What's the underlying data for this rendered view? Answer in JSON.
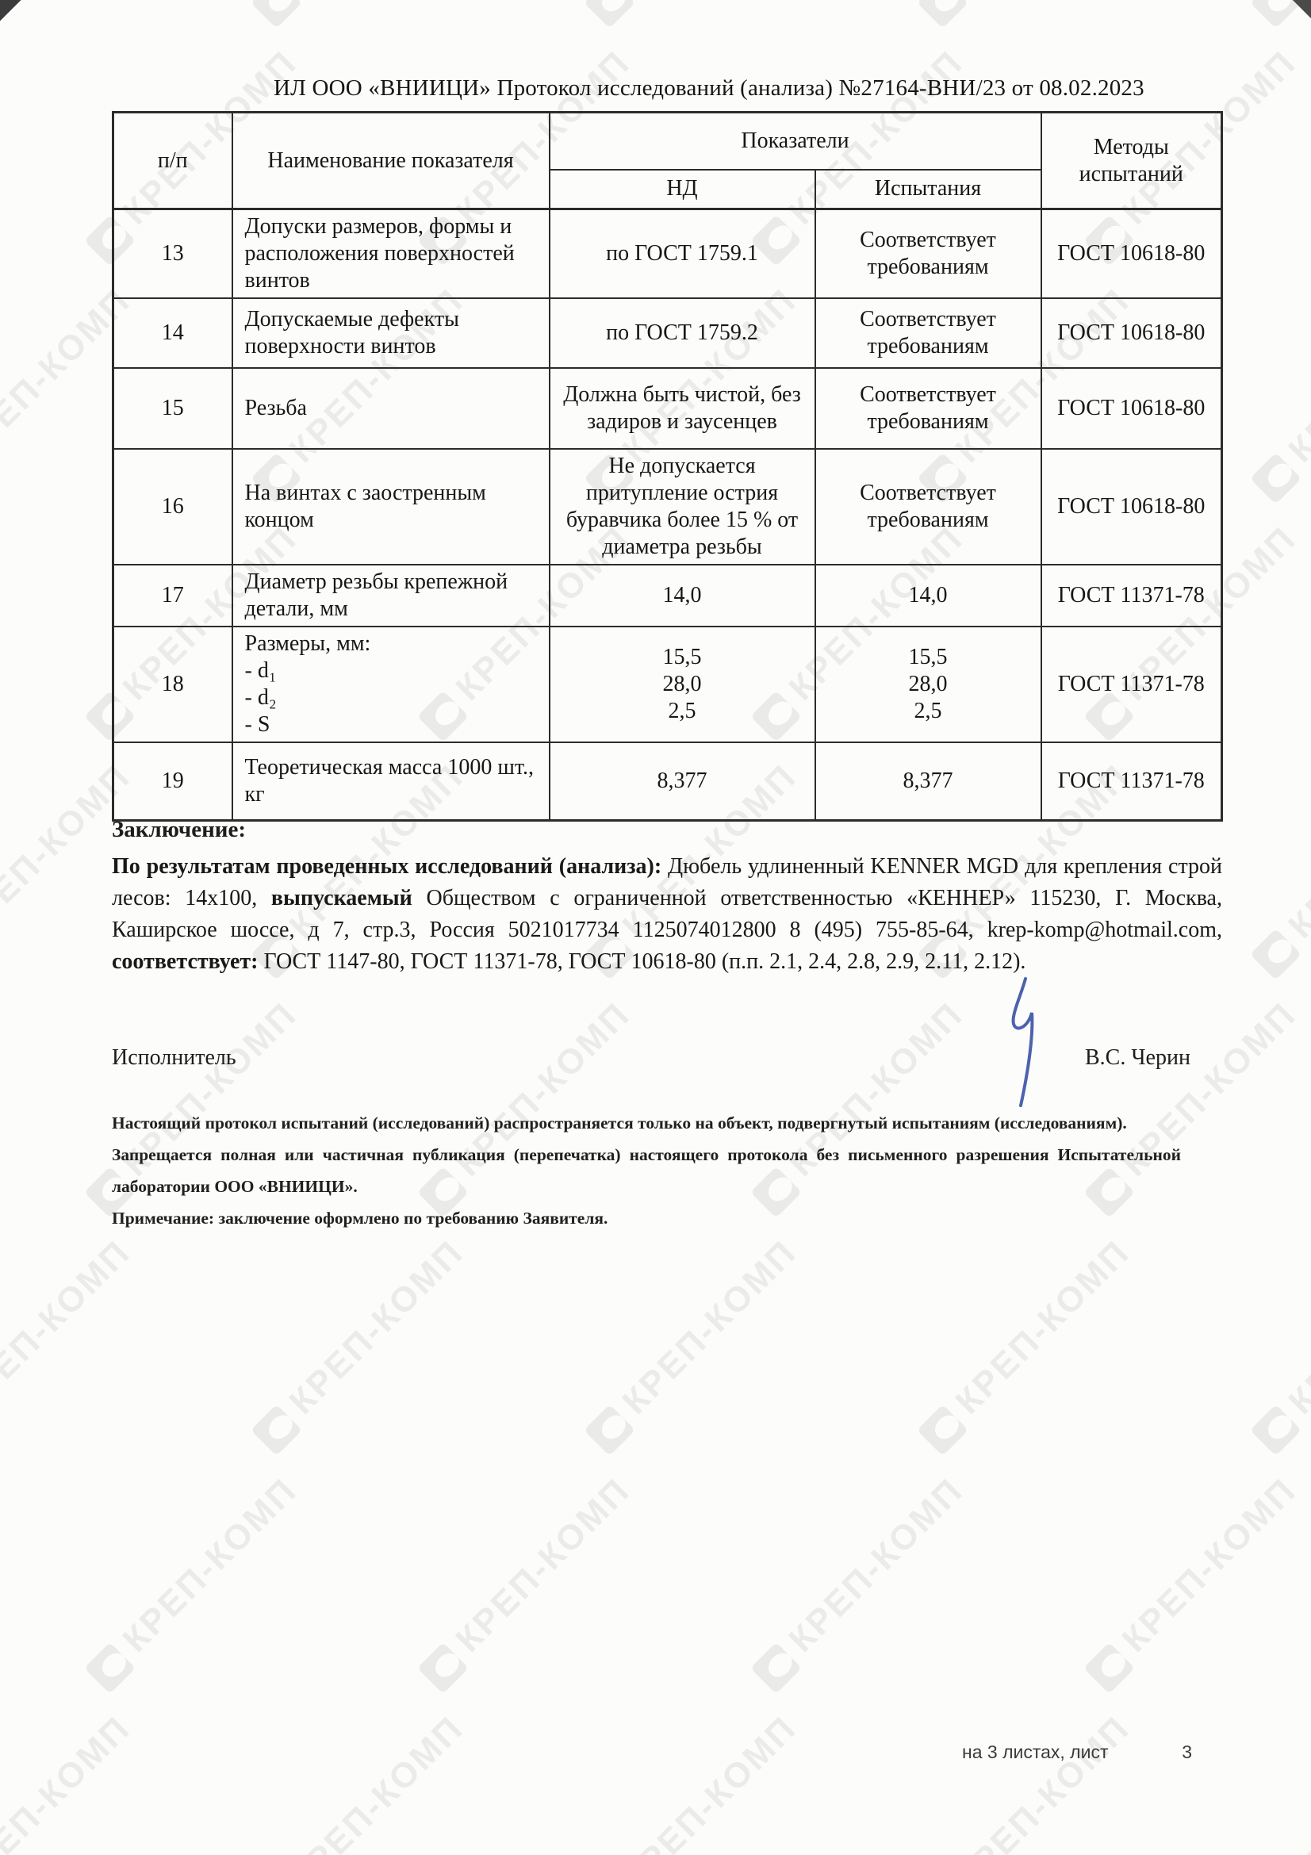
{
  "header": {
    "title": "ИЛ ООО «ВНИИЦИ» Протокол исследований (анализа)  №27164-ВНИ/23 от  08.02.2023"
  },
  "watermark": {
    "text": "КРЕП-КОМП"
  },
  "table": {
    "headers": {
      "col_num": "п/п",
      "col_name": "Наименование показателя",
      "col_group": "Показатели",
      "col_nd": "НД",
      "col_test": "Испытания",
      "col_methods": "Методы испытаний"
    },
    "rows": [
      {
        "num": "13",
        "name": "Допуски размеров, формы и расположения поверхностей винтов",
        "nd": "по ГОСТ 1759.1",
        "test": "Соответствует требованиям",
        "method": "ГОСТ 10618-80"
      },
      {
        "num": "14",
        "name": "Допускаемые дефекты поверхности винтов",
        "nd": "по ГОСТ 1759.2",
        "test": "Соответствует требованиям",
        "method": "ГОСТ 10618-80"
      },
      {
        "num": "15",
        "name": "Резьба",
        "nd": "Должна быть чистой, без задиров и заусенцев",
        "test": "Соответствует требованиям",
        "method": "ГОСТ 10618-80"
      },
      {
        "num": "16",
        "name": "На винтах с заостренным концом",
        "nd": "Не допускается притупление острия буравчика более 15 % от диаметра резьбы",
        "test": "Соответствует требованиям",
        "method": "ГОСТ 10618-80"
      },
      {
        "num": "17",
        "name": "Диаметр резьбы крепежной детали, мм",
        "nd": "14,0",
        "test": "14,0",
        "method": "ГОСТ 11371-78"
      },
      {
        "num": "18",
        "name_lines": [
          "Размеры, мм:",
          "- d₁",
          "- d₂",
          "- S"
        ],
        "nd_lines": [
          "15,5",
          "28,0",
          "2,5"
        ],
        "test_lines": [
          "15,5",
          "28,0",
          "2,5"
        ],
        "method": "ГОСТ 11371-78"
      },
      {
        "num": "19",
        "name": "Теоретическая масса 1000 шт., кг",
        "nd": "8,377",
        "test": "8,377",
        "method": "ГОСТ 11371-78"
      }
    ]
  },
  "conclusion": {
    "heading": "Заключение:",
    "seg1_bold": "По результатам проведенных исследований (анализа):",
    "seg2": " Дюбель удлиненный KENNER MGD для крепления строй лесов: 14x100, ",
    "seg3_bold": "выпускаемый",
    "seg4": " Обществом с ограниченной ответственностью «КЕННЕР» 115230, Г. Москва, Каширское шоссе, д 7, стр.3, Россия 5021017734 1125074012800 8 (495) 755-85-64, krep-komp@hotmail.com, ",
    "seg5_bold": "соответствует:",
    "seg6": " ГОСТ 1147-80, ГОСТ 11371-78, ГОСТ 10618-80 (п.п. 2.1, 2.4, 2.8, 2.9, 2.11, 2.12)."
  },
  "executor": {
    "label": "Исполнитель",
    "name": "В.С. Черин"
  },
  "notes": [
    "Настоящий протокол испытаний (исследований) распространяется только на объект, подвергнутый испытаниям (исследованиям).",
    "Запрещается полная или частичная публикация (перепечатка) настоящего протокола без письменного разрешения Испытательной лаборатории  ООО «ВНИИЦИ».",
    "Примечание: заключение оформлено по требованию Заявителя."
  ],
  "footer": {
    "sheets_label": "на 3 листах, лист",
    "page_number": "3"
  }
}
